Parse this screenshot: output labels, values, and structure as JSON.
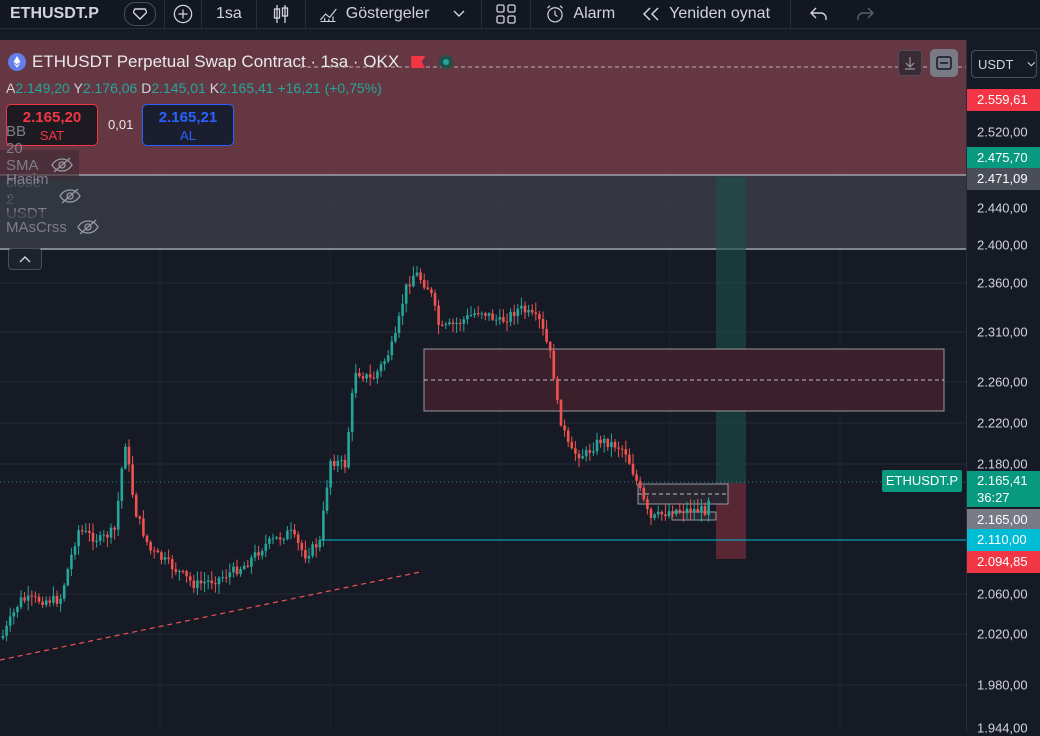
{
  "toolbar": {
    "symbol": "ETHUSDT.P",
    "interval": "1sa",
    "indicators_label": "Göstergeler",
    "alarm_label": "Alarm",
    "replay_label": "Yeniden oynat",
    "icons": [
      "diamond-icon",
      "plus-icon",
      "candles-icon",
      "indicators-icon",
      "chevron-down-icon",
      "grid-icon",
      "alarm-clock-icon",
      "rewind-icon",
      "undo-icon",
      "redo-icon"
    ]
  },
  "legend": {
    "title": "ETHUSDT Perpetual Swap Contract · 1sa · OKX",
    "ohlc": {
      "o_label": "A",
      "o": "2.149,20",
      "h_label": "Y",
      "h": "2.176,06",
      "l_label": "D",
      "l": "2.145,01",
      "c_label": "K",
      "c": "2.165,41",
      "change": "+16,21 (+0,75%)"
    },
    "sell": {
      "price": "2.165,20",
      "label": "SAT"
    },
    "buy": {
      "price": "2.165,21",
      "label": "AL"
    },
    "spread": "0,01",
    "indicators": [
      "BB 20 SMA close 2",
      "Hacim · USDT",
      "MAsCrss"
    ]
  },
  "price_axis": {
    "currency": "USDT",
    "ticks": [
      "2.520,00",
      "2.440,00",
      "2.400,00",
      "2.360,00",
      "2.310,00",
      "2.260,00",
      "2.220,00",
      "2.180,00",
      "2.060,00",
      "2.020,00",
      "1.980,00",
      "1.944,00"
    ],
    "tags": [
      {
        "text": "2.559,61",
        "color": "#f23645"
      },
      {
        "text": "2.475,70",
        "color": "#089981"
      },
      {
        "text": "2.471,09",
        "color": "#4a4e59"
      },
      {
        "text": "2.165,41",
        "sub": "36:27",
        "color": "#089981"
      },
      {
        "text": "2.165,00",
        "color": "#787b86"
      },
      {
        "text": "2.110,00",
        "color": "#00bcd4"
      },
      {
        "text": "2.094,85",
        "color": "#f23645"
      }
    ],
    "symbol_tag": "ETHUSDT.P"
  },
  "colors": {
    "up": "#26a69a",
    "down": "#ef5350",
    "bg": "#161a25",
    "accent": "#2962ff"
  }
}
